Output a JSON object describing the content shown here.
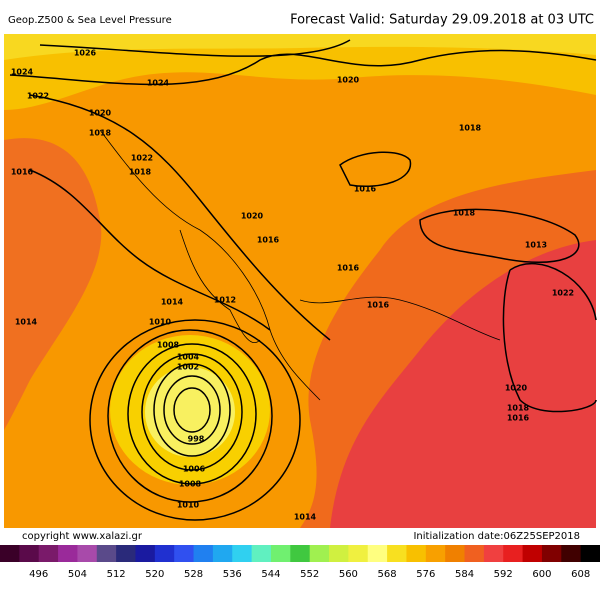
{
  "header": {
    "title": "Geop.Z500 & Sea Level Pressure",
    "forecast": "Forecast Valid:  Saturday 29.09.2018 at 03 UTC"
  },
  "isobar_labels": [
    1026,
    1024,
    1024,
    1022,
    1020,
    1018,
    1020,
    1018,
    1022,
    1018,
    1016,
    1016,
    1018,
    1020,
    1016,
    1013,
    1016,
    1022,
    1014,
    1012,
    1016,
    1014,
    1010,
    1008,
    1004,
    1002,
    1020,
    1018,
    1016,
    998,
    1006,
    1008,
    1010,
    1014
  ],
  "footer": {
    "copyright": "copyright www.xalazi.gr",
    "initialization": "Initialization date:06Z25SEP2018"
  },
  "legend": {
    "colors": [
      "#3a0028",
      "#5a0a4a",
      "#7a1a6a",
      "#9a2a9a",
      "#a84aaa",
      "#5a4a8a",
      "#2a2a7a",
      "#1a1aa0",
      "#2030d0",
      "#3050f0",
      "#2080f0",
      "#20a8f0",
      "#30d0f0",
      "#60f0c0",
      "#70f070",
      "#40c840",
      "#a0f050",
      "#d0f040",
      "#f0f040",
      "#ffff80",
      "#f8e020",
      "#f8c000",
      "#f8a000",
      "#f08000",
      "#f06020",
      "#f04040",
      "#e82020",
      "#c00000",
      "#800000",
      "#400000",
      "#000000"
    ],
    "labels": [
      496,
      504,
      512,
      520,
      528,
      536,
      544,
      552,
      560,
      568,
      576,
      584,
      592,
      600,
      608
    ]
  }
}
